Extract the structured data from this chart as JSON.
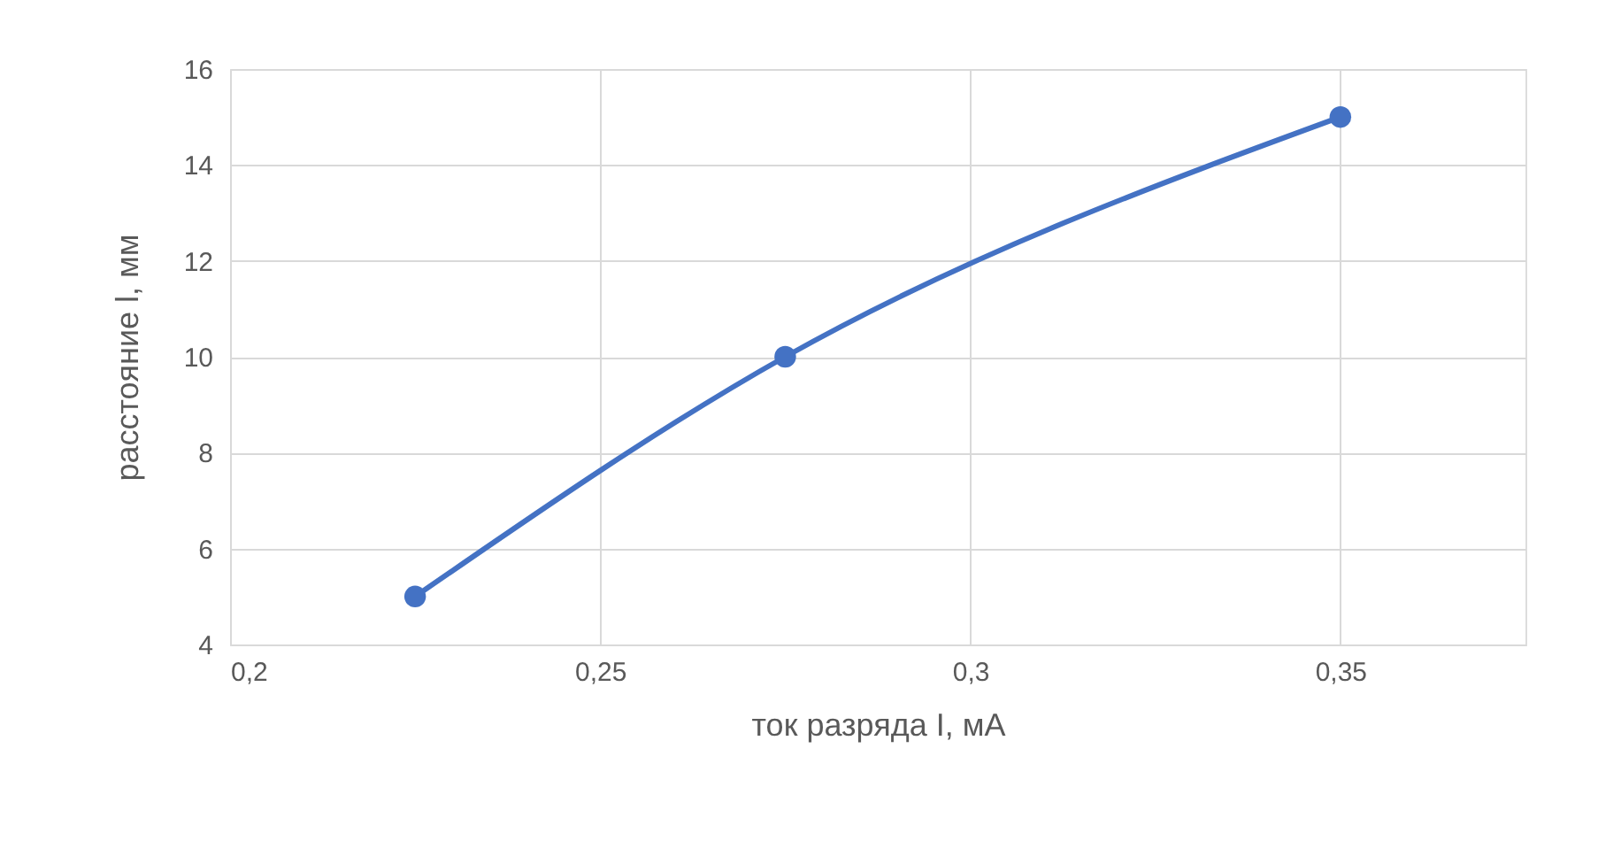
{
  "chart_data": {
    "type": "line",
    "xlabel": "ток разряда I, мА",
    "ylabel": "расстояние l, мм",
    "x": [
      0.225,
      0.275,
      0.35
    ],
    "series": [
      {
        "color": "#4472c4",
        "values": [
          5,
          10,
          15
        ]
      }
    ],
    "xlim": [
      0.2,
      0.375
    ],
    "xticks": [
      {
        "value": 0.2,
        "label": "0,2"
      },
      {
        "value": 0.25,
        "label": "0,25"
      },
      {
        "value": 0.3,
        "label": "0,3"
      },
      {
        "value": 0.35,
        "label": "0,35"
      }
    ],
    "ylim": [
      4,
      16
    ],
    "yticks": [
      4,
      6,
      8,
      10,
      12,
      14,
      16
    ],
    "grid": true,
    "marker": "circle",
    "line_style": "solid"
  }
}
